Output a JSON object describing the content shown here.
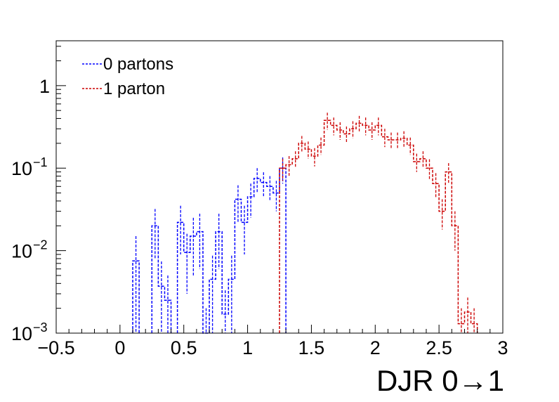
{
  "chart_data": {
    "type": "histogram",
    "xlabel": "DJR 0→1",
    "ylabel": "",
    "y_scale": "log",
    "xlim": [
      -0.5,
      3.0
    ],
    "ylim": [
      0.001,
      3.5
    ],
    "grid": false,
    "legend_position": "top-left",
    "x_ticks": [
      "−0.5",
      "0",
      "0.5",
      "1",
      "1.5",
      "2",
      "2.5",
      "3"
    ],
    "x_tick_values": [
      -0.5,
      0,
      0.5,
      1,
      1.5,
      2,
      2.5,
      3
    ],
    "y_ticks": [
      {
        "value": 0.001,
        "base": "10",
        "exp": "−3"
      },
      {
        "value": 0.01,
        "base": "10",
        "exp": "−2"
      },
      {
        "value": 0.1,
        "base": "10",
        "exp": "−1"
      },
      {
        "value": 1,
        "base": "1",
        "exp": ""
      }
    ],
    "bin_width": 0.05,
    "series": [
      {
        "name": "0 partons",
        "color": "#0000ff",
        "line_style": "dashed",
        "bins": [
          {
            "x": 0.125,
            "y": 0.0075,
            "err": 0.0075
          },
          {
            "x": 0.275,
            "y": 0.02,
            "err": 0.012
          },
          {
            "x": 0.325,
            "y": 0.0037,
            "err": 0.0037
          },
          {
            "x": 0.375,
            "y": 0.0025,
            "err": 0.0025
          },
          {
            "x": 0.475,
            "y": 0.022,
            "err": 0.013
          },
          {
            "x": 0.525,
            "y": 0.0095,
            "err": 0.0065
          },
          {
            "x": 0.575,
            "y": 0.015,
            "err": 0.01
          },
          {
            "x": 0.625,
            "y": 0.017,
            "err": 0.011
          },
          {
            "x": 0.675,
            "y": 0.001,
            "err": 0.001
          },
          {
            "x": 0.725,
            "y": 0.0045,
            "err": 0.0042
          },
          {
            "x": 0.775,
            "y": 0.017,
            "err": 0.011
          },
          {
            "x": 0.825,
            "y": 0.0017,
            "err": 0.0016
          },
          {
            "x": 0.875,
            "y": 0.0045,
            "err": 0.0042
          },
          {
            "x": 0.925,
            "y": 0.042,
            "err": 0.02
          },
          {
            "x": 0.975,
            "y": 0.022,
            "err": 0.013
          },
          {
            "x": 1.025,
            "y": 0.045,
            "err": 0.02
          },
          {
            "x": 1.075,
            "y": 0.075,
            "err": 0.025
          },
          {
            "x": 1.125,
            "y": 0.067,
            "err": 0.022
          },
          {
            "x": 1.175,
            "y": 0.06,
            "err": 0.02
          },
          {
            "x": 1.225,
            "y": 0.05,
            "err": 0.02
          },
          {
            "x": 1.275,
            "y": 0.1,
            "err": 0.035
          }
        ]
      },
      {
        "name": "1 parton",
        "color": "#cc0000",
        "line_style": "dashed",
        "bins": [
          {
            "x": 1.275,
            "y": 0.1,
            "err": 0.03
          },
          {
            "x": 1.325,
            "y": 0.11,
            "err": 0.03
          },
          {
            "x": 1.375,
            "y": 0.13,
            "err": 0.03
          },
          {
            "x": 1.425,
            "y": 0.2,
            "err": 0.045
          },
          {
            "x": 1.475,
            "y": 0.17,
            "err": 0.04
          },
          {
            "x": 1.525,
            "y": 0.14,
            "err": 0.035
          },
          {
            "x": 1.575,
            "y": 0.19,
            "err": 0.045
          },
          {
            "x": 1.625,
            "y": 0.38,
            "err": 0.09
          },
          {
            "x": 1.675,
            "y": 0.33,
            "err": 0.08
          },
          {
            "x": 1.725,
            "y": 0.29,
            "err": 0.07
          },
          {
            "x": 1.775,
            "y": 0.26,
            "err": 0.06
          },
          {
            "x": 1.825,
            "y": 0.3,
            "err": 0.07
          },
          {
            "x": 1.875,
            "y": 0.35,
            "err": 0.08
          },
          {
            "x": 1.925,
            "y": 0.33,
            "err": 0.08
          },
          {
            "x": 1.975,
            "y": 0.29,
            "err": 0.07
          },
          {
            "x": 2.025,
            "y": 0.33,
            "err": 0.08
          },
          {
            "x": 2.075,
            "y": 0.24,
            "err": 0.06
          },
          {
            "x": 2.125,
            "y": 0.22,
            "err": 0.05
          },
          {
            "x": 2.175,
            "y": 0.22,
            "err": 0.05
          },
          {
            "x": 2.225,
            "y": 0.23,
            "err": 0.05
          },
          {
            "x": 2.275,
            "y": 0.19,
            "err": 0.045
          },
          {
            "x": 2.325,
            "y": 0.12,
            "err": 0.03
          },
          {
            "x": 2.375,
            "y": 0.13,
            "err": 0.03
          },
          {
            "x": 2.425,
            "y": 0.1,
            "err": 0.028
          },
          {
            "x": 2.475,
            "y": 0.065,
            "err": 0.022
          },
          {
            "x": 2.525,
            "y": 0.03,
            "err": 0.012
          },
          {
            "x": 2.575,
            "y": 0.09,
            "err": 0.025
          },
          {
            "x": 2.625,
            "y": 0.02,
            "err": 0.01
          },
          {
            "x": 2.675,
            "y": 0.0013,
            "err": 0.0007
          },
          {
            "x": 2.725,
            "y": 0.0018,
            "err": 0.0009
          },
          {
            "x": 2.775,
            "y": 0.0013,
            "err": 0.0007
          }
        ]
      }
    ]
  }
}
